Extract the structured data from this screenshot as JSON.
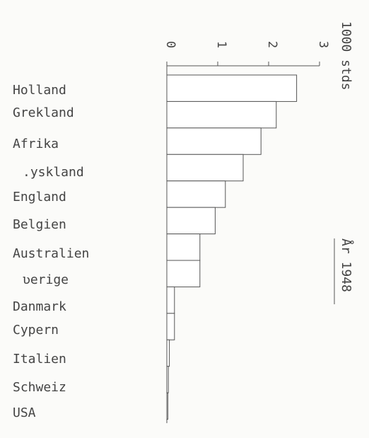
{
  "chart_data": {
    "type": "bar",
    "orientation": "horizontal",
    "categories": [
      "Holland",
      "Grekland",
      "Afrika",
      ".yskland",
      "England",
      "Belgien",
      "Australien",
      "ʋerige",
      "Danmark",
      "Cypern",
      "Italien",
      "Schweiz",
      "USA"
    ],
    "values": [
      2.55,
      2.15,
      1.85,
      1.5,
      1.15,
      0.95,
      0.65,
      0.65,
      0.15,
      0.15,
      0.05,
      0.03,
      0.02
    ],
    "xlim": [
      0,
      3
    ],
    "x_ticks": [
      "0",
      "1",
      "2",
      "3"
    ],
    "unit_label": "1000 stds",
    "annotation": "År 1948",
    "grid": false
  }
}
